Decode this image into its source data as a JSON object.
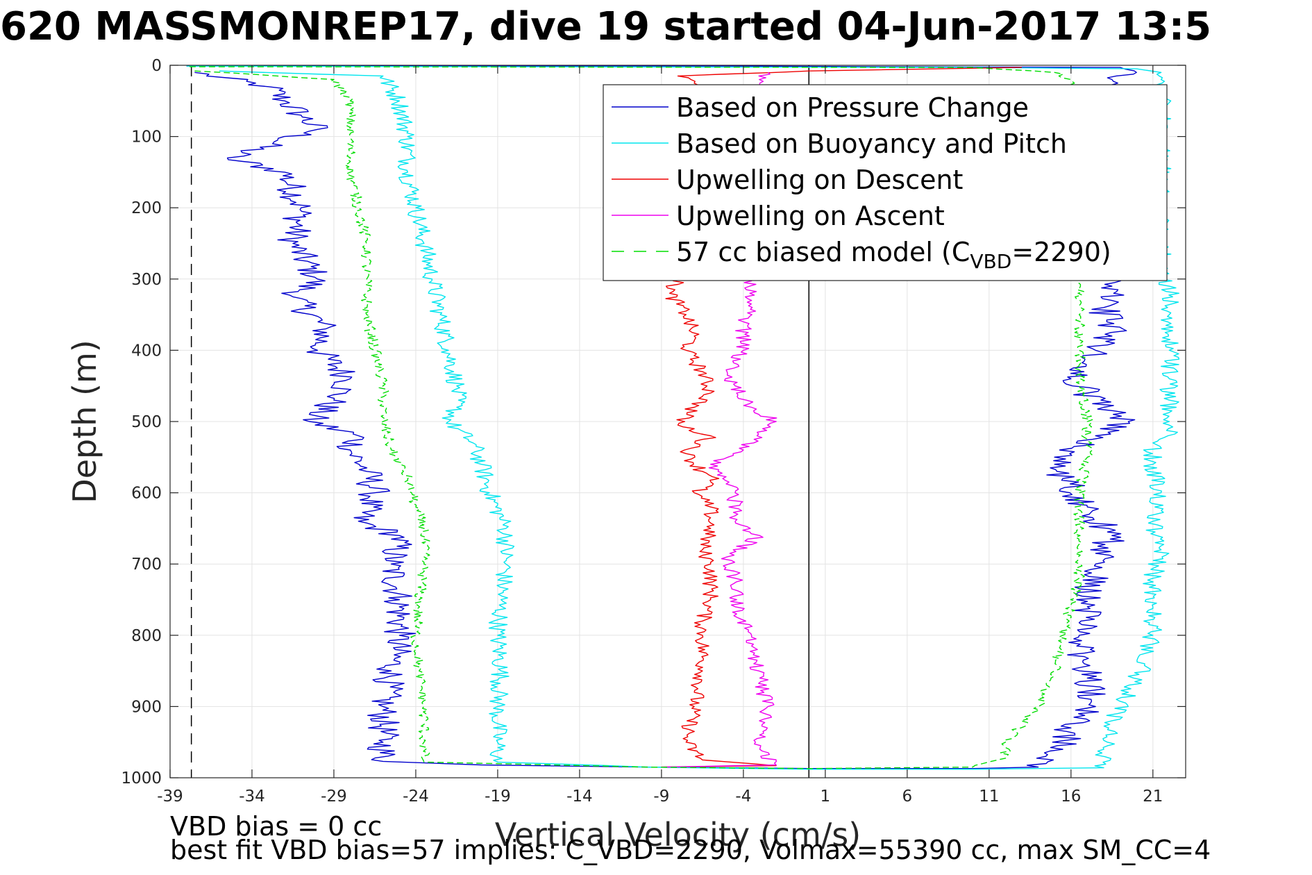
{
  "title": "620 MASSMONREP17, dive 19 started 04-Jun-2017 13:5",
  "footnotes": {
    "line1": "VBD bias = 0 cc",
    "line2": "best fit VBD bias=57 implies: C_VBD=2290, Volmax=55390 cc, max SM_CC=4"
  },
  "chart_data": {
    "type": "line",
    "xlabel": "Vertical Velocity (cm/s)",
    "ylabel": "Depth (m)",
    "xlim": [
      -39,
      23
    ],
    "ylim": [
      0,
      1000
    ],
    "y_reversed": true,
    "grid": true,
    "xticks": [
      -39,
      -34,
      -29,
      -24,
      -19,
      -14,
      -9,
      -4,
      1,
      6,
      11,
      16,
      21
    ],
    "yticks": [
      0,
      100,
      200,
      300,
      400,
      500,
      600,
      700,
      800,
      900,
      1000
    ],
    "reference_lines": [
      {
        "x": -37.7,
        "style": "dashed",
        "color": "#000000"
      },
      {
        "x": 0,
        "style": "solid",
        "color": "#000000"
      }
    ],
    "legend": {
      "position": "top-right",
      "entries": [
        "Based on Pressure Change",
        "Based on Buoyancy and Pitch",
        "Upwelling on Descent",
        "Upwelling on Ascent",
        "57 cc biased model (C",
        "VBD",
        "=2290)"
      ]
    },
    "series": [
      {
        "name": "Based on Pressure Change",
        "color": "#0000cc",
        "style": "solid",
        "noise": 1.0,
        "points": [
          [
            -37.5,
            10
          ],
          [
            -33,
            30
          ],
          [
            -32,
            50
          ],
          [
            -31,
            70
          ],
          [
            -30,
            90
          ],
          [
            -35.5,
            130
          ],
          [
            -32,
            150
          ],
          [
            -31,
            200
          ],
          [
            -31.5,
            250
          ],
          [
            -30,
            300
          ],
          [
            -31.5,
            325
          ],
          [
            -29.5,
            370
          ],
          [
            -30,
            400
          ],
          [
            -28,
            440
          ],
          [
            -29,
            470
          ],
          [
            -30.5,
            500
          ],
          [
            -27.5,
            520
          ],
          [
            -28,
            540
          ],
          [
            -27,
            570
          ],
          [
            -26.5,
            600
          ],
          [
            -27.5,
            640
          ],
          [
            -25,
            660
          ],
          [
            -25.5,
            700
          ],
          [
            -25,
            750
          ],
          [
            -25,
            800
          ],
          [
            -25.5,
            850
          ],
          [
            -26,
            900
          ],
          [
            -26,
            950
          ],
          [
            -26,
            977
          ],
          [
            -20,
            982
          ],
          [
            -10,
            985
          ],
          [
            0,
            987
          ],
          [
            10,
            987
          ],
          [
            14,
            985
          ],
          [
            15.5,
            960
          ],
          [
            16,
            930
          ],
          [
            17.5,
            900
          ],
          [
            17,
            860
          ],
          [
            16.5,
            800
          ],
          [
            17,
            760
          ],
          [
            17.5,
            700
          ],
          [
            18.5,
            660
          ],
          [
            17,
            620
          ],
          [
            15.5,
            580
          ],
          [
            15,
            560
          ],
          [
            17.5,
            520
          ],
          [
            19.5,
            500
          ],
          [
            18,
            480
          ],
          [
            17,
            460
          ],
          [
            16,
            440
          ],
          [
            17.5,
            400
          ],
          [
            18.5,
            380
          ],
          [
            18,
            340
          ],
          [
            18.5,
            310
          ],
          [
            18,
            300
          ],
          [
            18.5,
            20
          ],
          [
            20,
            10
          ],
          [
            19,
            3
          ],
          [
            5,
            2
          ],
          [
            -5,
            1
          ],
          [
            -38,
            1
          ]
        ]
      },
      {
        "name": "Based on Buoyancy and Pitch",
        "color": "#00e5ee",
        "style": "solid",
        "noise": 0.6,
        "points": [
          [
            -36,
            8
          ],
          [
            -26,
            15
          ],
          [
            -25,
            50
          ],
          [
            -24.5,
            100
          ],
          [
            -24.5,
            150
          ],
          [
            -24,
            200
          ],
          [
            -23.5,
            250
          ],
          [
            -23,
            300
          ],
          [
            -22.5,
            350
          ],
          [
            -22,
            400
          ],
          [
            -21.5,
            450
          ],
          [
            -21.5,
            480
          ],
          [
            -22,
            500
          ],
          [
            -20.5,
            530
          ],
          [
            -20,
            560
          ],
          [
            -19.5,
            600
          ],
          [
            -18.5,
            650
          ],
          [
            -18.5,
            700
          ],
          [
            -18.8,
            750
          ],
          [
            -19,
            800
          ],
          [
            -18.8,
            850
          ],
          [
            -19,
            900
          ],
          [
            -19,
            950
          ],
          [
            -19,
            978
          ],
          [
            -10,
            985
          ],
          [
            0,
            988
          ],
          [
            10,
            988
          ],
          [
            18,
            986
          ],
          [
            18,
            960
          ],
          [
            18.5,
            920
          ],
          [
            19.5,
            880
          ],
          [
            20.5,
            840
          ],
          [
            21,
            800
          ],
          [
            21,
            760
          ],
          [
            21,
            720
          ],
          [
            21.5,
            680
          ],
          [
            21,
            640
          ],
          [
            21.5,
            600
          ],
          [
            21,
            560
          ],
          [
            21,
            530
          ],
          [
            22.5,
            515
          ],
          [
            22,
            500
          ],
          [
            22,
            470
          ],
          [
            22,
            440
          ],
          [
            22,
            400
          ],
          [
            22,
            350
          ],
          [
            22,
            310
          ],
          [
            21.5,
            300
          ],
          [
            21.5,
            20
          ],
          [
            21.5,
            10
          ],
          [
            20,
            5
          ],
          [
            10,
            3
          ],
          [
            -20,
            2
          ],
          [
            -38,
            1
          ]
        ]
      },
      {
        "name": "Upwelling on Descent",
        "color": "#ee0000",
        "style": "solid",
        "noise": 0.5,
        "points": [
          [
            13,
            3
          ],
          [
            0,
            8
          ],
          [
            -8,
            15
          ],
          [
            -7,
            25
          ],
          [
            -7,
            40
          ],
          [
            -8,
            300
          ],
          [
            -8.5,
            320
          ],
          [
            -7.5,
            350
          ],
          [
            -7,
            380
          ],
          [
            -7.5,
            400
          ],
          [
            -6.5,
            430
          ],
          [
            -6,
            460
          ],
          [
            -7,
            480
          ],
          [
            -8,
            505
          ],
          [
            -6,
            520
          ],
          [
            -7.5,
            545
          ],
          [
            -6.5,
            570
          ],
          [
            -5.5,
            580
          ],
          [
            -7,
            600
          ],
          [
            -6,
            620
          ],
          [
            -6,
            650
          ],
          [
            -6.5,
            680
          ],
          [
            -6,
            700
          ],
          [
            -6,
            750
          ],
          [
            -6.5,
            780
          ],
          [
            -6.5,
            800
          ],
          [
            -6.5,
            850
          ],
          [
            -7,
            900
          ],
          [
            -7.5,
            950
          ],
          [
            -6.5,
            975
          ],
          [
            -2,
            983
          ],
          [
            -9,
            985
          ]
        ]
      },
      {
        "name": "Upwelling on Ascent",
        "color": "#ee00ee",
        "style": "solid",
        "noise": 0.5,
        "points": [
          [
            -9,
            985
          ],
          [
            -2,
            982
          ],
          [
            -3,
            960
          ],
          [
            -3,
            940
          ],
          [
            -2.5,
            900
          ],
          [
            -3,
            860
          ],
          [
            -3.5,
            800
          ],
          [
            -4.5,
            760
          ],
          [
            -4.5,
            720
          ],
          [
            -5,
            690
          ],
          [
            -3,
            660
          ],
          [
            -4.5,
            640
          ],
          [
            -4.5,
            600
          ],
          [
            -6,
            560
          ],
          [
            -4,
            540
          ],
          [
            -2,
            500
          ],
          [
            -3.5,
            480
          ],
          [
            -4.5,
            450
          ],
          [
            -5,
            430
          ],
          [
            -4,
            400
          ],
          [
            -4,
            360
          ],
          [
            -3.5,
            330
          ],
          [
            -3.5,
            300
          ],
          [
            -3,
            25
          ],
          [
            -2.5,
            10
          ]
        ]
      },
      {
        "name": "57 cc biased model (CVBD=2290)",
        "color": "#00dd00",
        "style": "dashed",
        "noise": 0.35,
        "points": [
          [
            -37.5,
            8
          ],
          [
            -29,
            20
          ],
          [
            -28,
            50
          ],
          [
            -28,
            100
          ],
          [
            -28,
            150
          ],
          [
            -27.5,
            200
          ],
          [
            -27,
            250
          ],
          [
            -27,
            300
          ],
          [
            -27,
            350
          ],
          [
            -26.5,
            400
          ],
          [
            -26,
            450
          ],
          [
            -26,
            500
          ],
          [
            -25.5,
            540
          ],
          [
            -24.5,
            580
          ],
          [
            -24,
            620
          ],
          [
            -23.5,
            650
          ],
          [
            -23.5,
            700
          ],
          [
            -23.8,
            750
          ],
          [
            -24,
            800
          ],
          [
            -23.8,
            850
          ],
          [
            -23.5,
            900
          ],
          [
            -23.5,
            950
          ],
          [
            -23.5,
            978
          ],
          [
            -10,
            985
          ],
          [
            0,
            987
          ],
          [
            10,
            985
          ],
          [
            12,
            970
          ],
          [
            12,
            950
          ],
          [
            14,
            900
          ],
          [
            15,
            850
          ],
          [
            15.5,
            800
          ],
          [
            16,
            760
          ],
          [
            16.5,
            720
          ],
          [
            16.5,
            680
          ],
          [
            16.5,
            640
          ],
          [
            16.5,
            600
          ],
          [
            17,
            550
          ],
          [
            17,
            500
          ],
          [
            16.5,
            450
          ],
          [
            16.5,
            400
          ],
          [
            16.5,
            350
          ],
          [
            16.5,
            300
          ],
          [
            16,
            20
          ],
          [
            15,
            10
          ],
          [
            10,
            3
          ],
          [
            -38,
            2
          ]
        ]
      }
    ]
  }
}
